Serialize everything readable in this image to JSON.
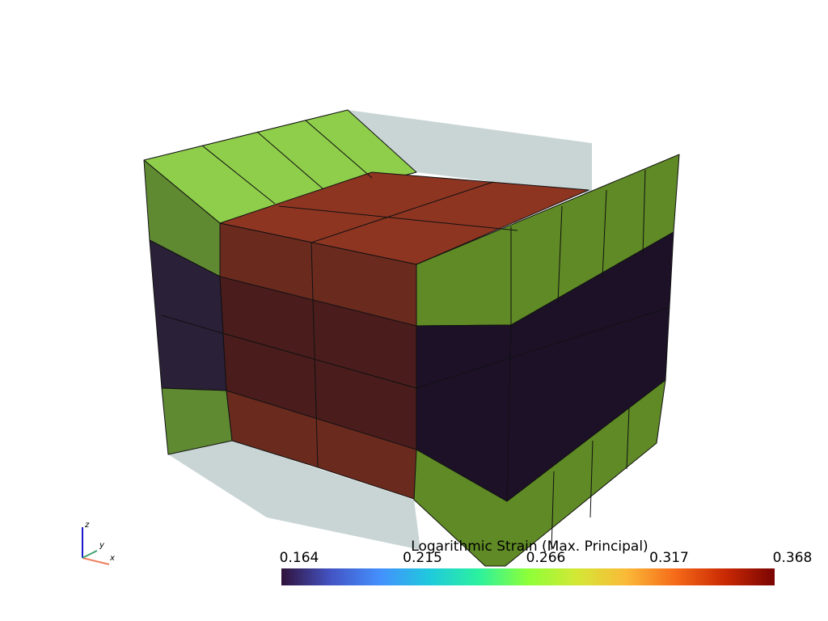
{
  "scalar_bar": {
    "title": "Logarithmic Strain (Max. Principal)",
    "ticks": [
      0.164,
      0.215,
      0.266,
      0.317,
      0.368
    ]
  },
  "axes_widget": {
    "x": "x",
    "y": "y",
    "z": "z"
  }
}
